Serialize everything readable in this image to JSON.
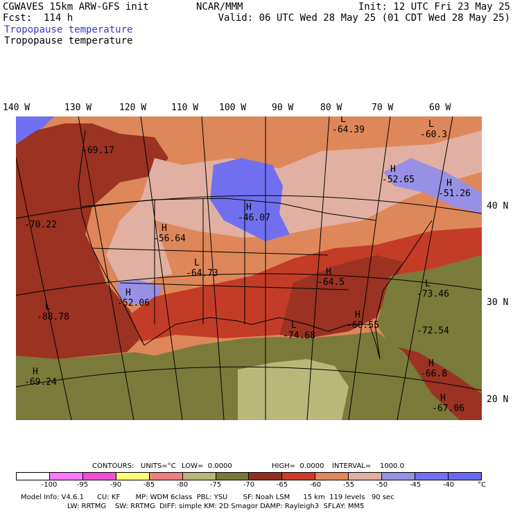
{
  "header": {
    "model": "CGWAVES 15km ARW-GFS init",
    "forecast": "Fcst:  114 h",
    "field_blue": "Tropopause temperature",
    "field_black": "Tropopause temperature",
    "center": "NCAR/MMM",
    "init": "Init: 12 UTC Fri 23 May 25",
    "valid": "Valid: 06 UTC Wed 28 May 25 (01 CDT Wed 28 May 25)"
  },
  "longitude_labels": [
    "140 W",
    "130 W",
    "120 W",
    "110 W",
    "100 W",
    "90 W",
    "80 W",
    "70 W",
    "60 W"
  ],
  "latitude_labels": [
    "40 N",
    "30 N",
    "20 N"
  ],
  "map_labels": [
    {
      "letter": "L",
      "value": "-64.39"
    },
    {
      "letter": "L",
      "value": "-60.3"
    },
    {
      "letter": "",
      "value": "-69.17"
    },
    {
      "letter": "H",
      "value": "-52.65"
    },
    {
      "letter": "H",
      "value": "-51.26"
    },
    {
      "letter": "",
      "value": "-70.22"
    },
    {
      "letter": "H",
      "value": "-46.07"
    },
    {
      "letter": "H",
      "value": "-56.64"
    },
    {
      "letter": "L",
      "value": "-64.73"
    },
    {
      "letter": "H",
      "value": "-64.5"
    },
    {
      "letter": "L",
      "value": "-73.46"
    },
    {
      "letter": "H",
      "value": "-52.06"
    },
    {
      "letter": "L",
      "value": "-88.78"
    },
    {
      "letter": "L",
      "value": "-74.68"
    },
    {
      "letter": "H",
      "value": "-60.55"
    },
    {
      "letter": "",
      "value": "-72.54"
    },
    {
      "letter": "H",
      "value": "-66.8"
    },
    {
      "letter": "H",
      "value": "-69.24"
    },
    {
      "letter": "H",
      "value": "-67.06"
    }
  ],
  "contours": {
    "label": "CONTOURS:",
    "units": "UNITS=°C",
    "low": "LOW=  0.0000",
    "high": "HIGH=  0.0000",
    "interval": "INTERVAL=    1000.0"
  },
  "colorbar": {
    "colors": [
      "#ffffff",
      "#ff78ff",
      "#f050d8",
      "#ffff78",
      "#f08080",
      "#b8b878",
      "#787838",
      "#903020",
      "#c83c28",
      "#e08858",
      "#e0b0a0",
      "#9890e0",
      "#7070f0",
      "#6868f8"
    ],
    "ticks": [
      "-100",
      "-95",
      "-90",
      "-85",
      "-80",
      "-75",
      "-70",
      "-65",
      "-60",
      "-55",
      "-50",
      "-45",
      "-40"
    ],
    "unit": "°C"
  },
  "footer": {
    "line1": "Model Info: V4.6.1      CU: KF       MP: WDM 6class  PBL: YSU       SF: Noah LSM      15 km  119 levels   90 sec",
    "line2": "LW: RRTMG    SW: RRTMG  DIFF: simple KM: 2D Smagor DAMP: Rayleigh3  SFLAY: MM5"
  },
  "map_colors": {
    "blue_ext": "#6f6ff0",
    "pink_light": "#e2b0a2",
    "orange": "#de875a",
    "red_med": "#c33c28",
    "red_dark": "#9b3222",
    "olive": "#7a7a3a",
    "khaki": "#b8b87a",
    "blue_light": "#9890e4"
  }
}
